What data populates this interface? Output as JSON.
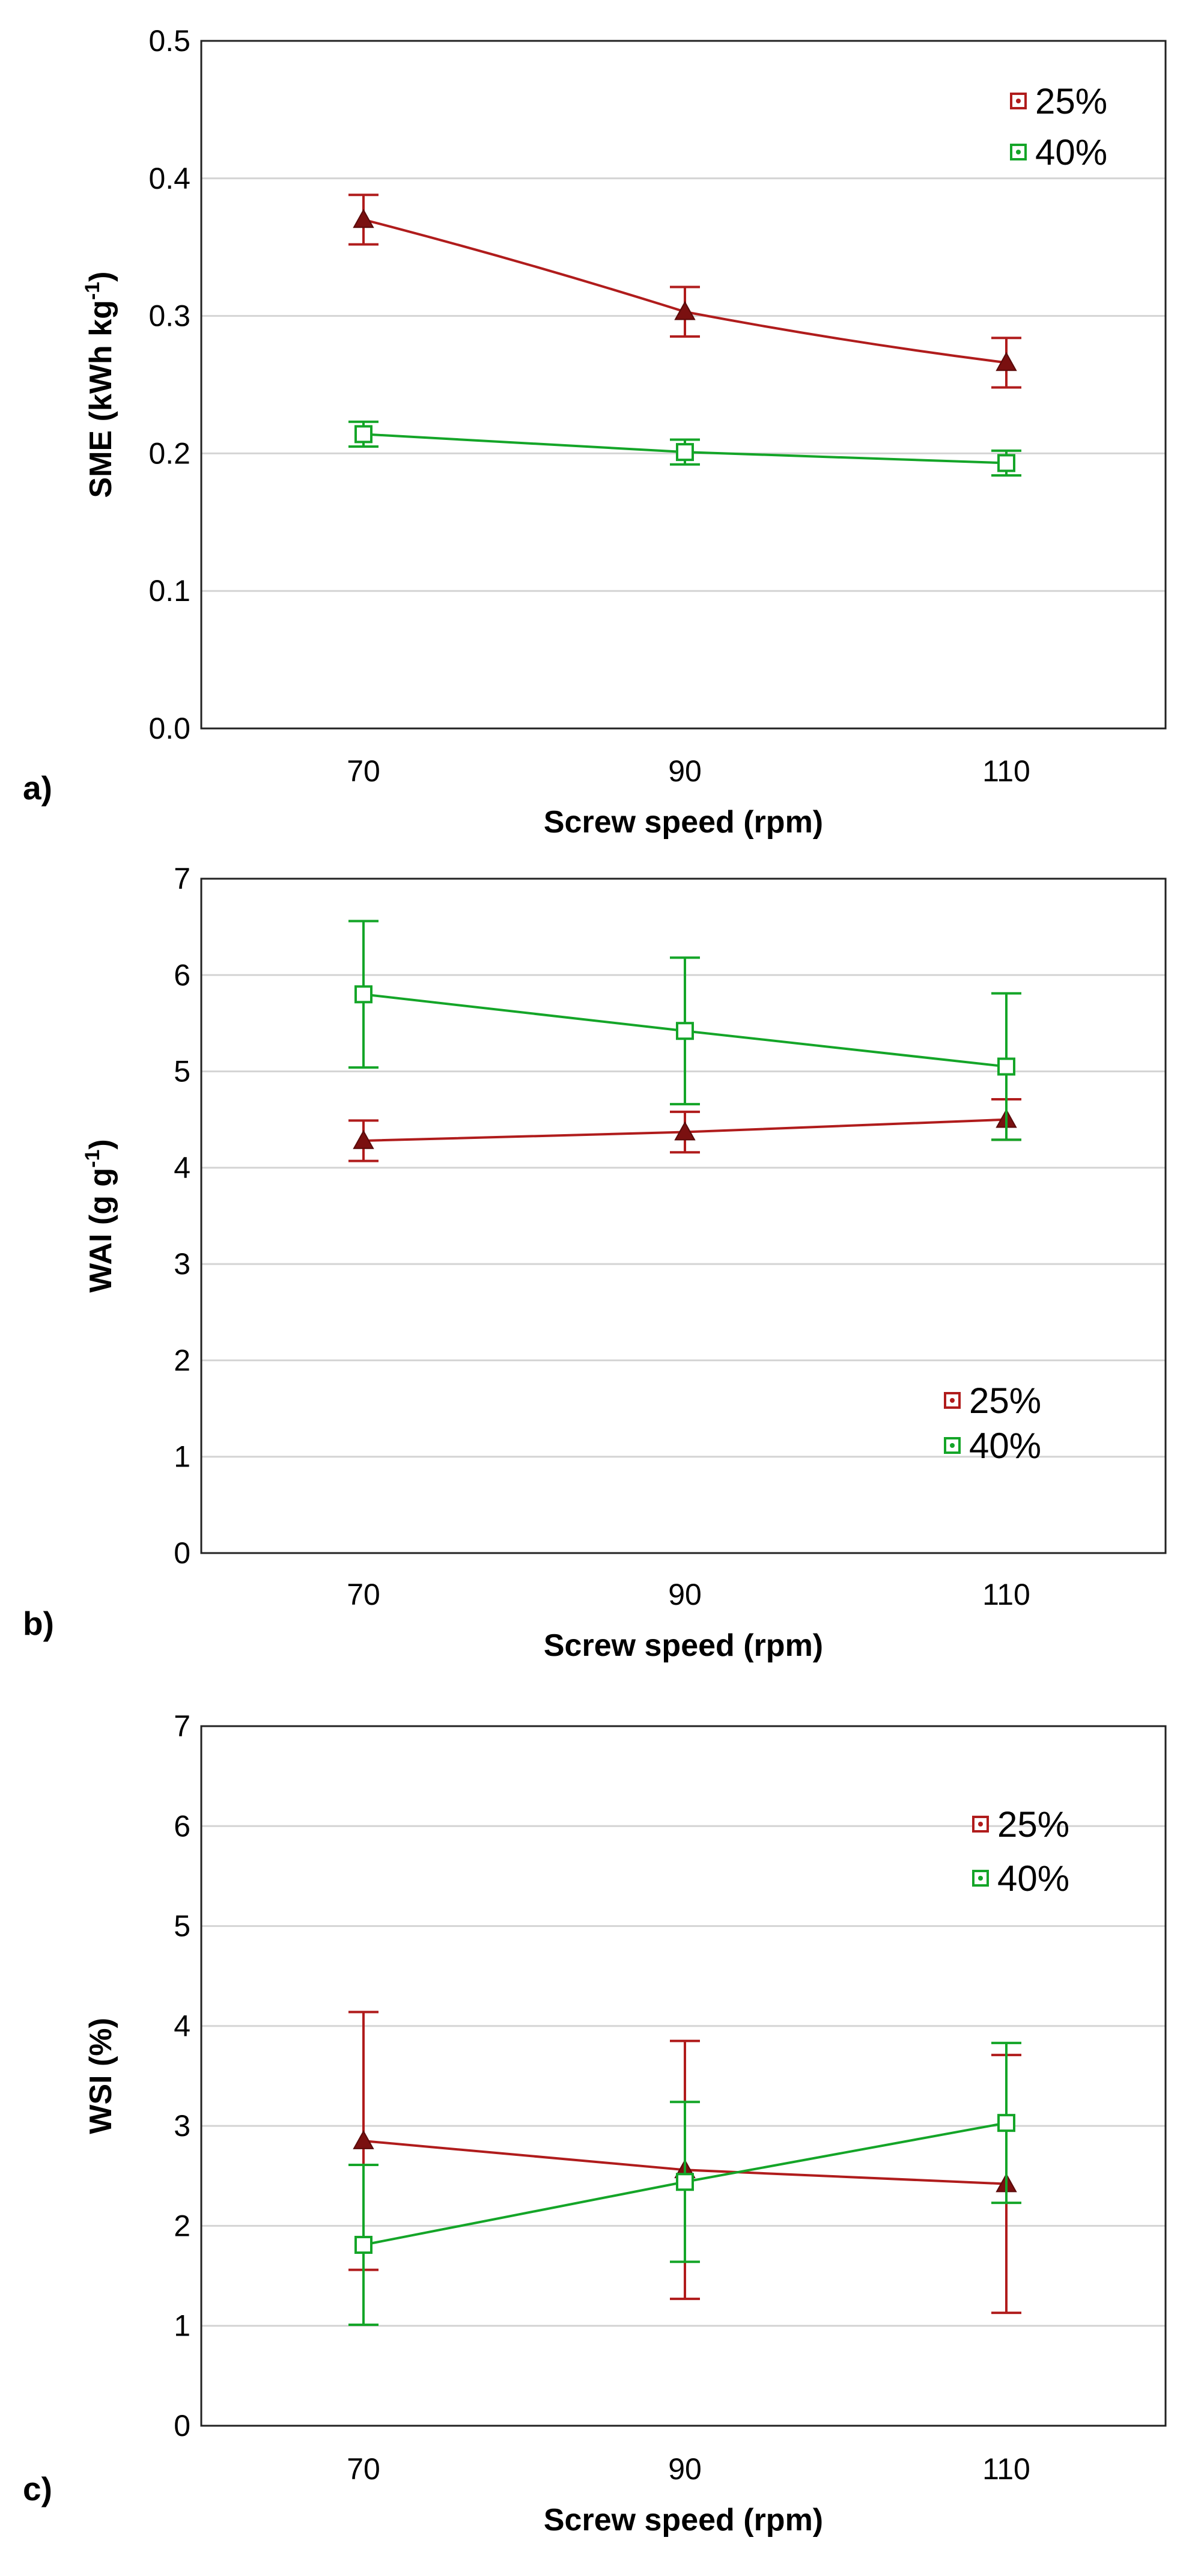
{
  "colors": {
    "series_25": "#b01c1c",
    "series_40": "#14a528",
    "grid": "#d4d4d4",
    "frame": "#222222"
  },
  "chart_data": [
    {
      "panel_label": "a)",
      "type": "line",
      "xlabel": "Screw speed (rpm)",
      "ylabel": "SME (kWh kg-1)",
      "ylabel_parts": {
        "main": "SME (kWh kg",
        "sup": "-1",
        "end": ")"
      },
      "categories": [
        "70",
        "90",
        "110"
      ],
      "ylim": [
        0,
        0.5
      ],
      "yticks": [
        "0.0",
        "0.1",
        "0.2",
        "0.3",
        "0.4",
        "0.5"
      ],
      "legend_position": "top-right",
      "grid": true,
      "series": [
        {
          "name": "25%",
          "marker": "triangle",
          "values": [
            0.37,
            0.303,
            0.266
          ],
          "err_low": [
            0.352,
            0.285,
            0.248
          ],
          "err_high": [
            0.388,
            0.321,
            0.284
          ]
        },
        {
          "name": "40%",
          "marker": "square",
          "values": [
            0.214,
            0.201,
            0.193
          ],
          "err_low": [
            0.205,
            0.192,
            0.184
          ],
          "err_high": [
            0.223,
            0.21,
            0.202
          ]
        }
      ]
    },
    {
      "panel_label": "b)",
      "type": "line",
      "xlabel": "Screw speed (rpm)",
      "ylabel": "WAI (g g-1)",
      "ylabel_parts": {
        "main": "WAI (g g",
        "sup": "-1",
        "end": ")"
      },
      "categories": [
        "70",
        "90",
        "110"
      ],
      "ylim": [
        0,
        7
      ],
      "yticks": [
        "0",
        "1",
        "2",
        "3",
        "4",
        "5",
        "6",
        "7"
      ],
      "legend_position": "bottom-right",
      "grid": true,
      "series": [
        {
          "name": "25%",
          "marker": "triangle",
          "values": [
            4.28,
            4.37,
            4.5
          ],
          "err_low": [
            4.07,
            4.16,
            4.29
          ],
          "err_high": [
            4.49,
            4.58,
            4.71
          ]
        },
        {
          "name": "40%",
          "marker": "square",
          "values": [
            5.8,
            5.42,
            5.05
          ],
          "err_low": [
            5.04,
            4.66,
            4.29
          ],
          "err_high": [
            6.56,
            6.18,
            5.81
          ]
        }
      ]
    },
    {
      "panel_label": "c)",
      "type": "line",
      "xlabel": "Screw speed (rpm)",
      "ylabel": "WSI (%)",
      "ylabel_parts": {
        "main": "WSI (%)",
        "sup": "",
        "end": ""
      },
      "categories": [
        "70",
        "90",
        "110"
      ],
      "ylim": [
        0,
        7
      ],
      "yticks": [
        "0",
        "1",
        "2",
        "3",
        "4",
        "5",
        "6",
        "7"
      ],
      "legend_position": "top-right",
      "grid": true,
      "series": [
        {
          "name": "25%",
          "marker": "triangle",
          "values": [
            2.85,
            2.56,
            2.42
          ],
          "err_low": [
            1.56,
            1.27,
            1.13
          ],
          "err_high": [
            4.14,
            3.85,
            3.71
          ]
        },
        {
          "name": "40%",
          "marker": "square",
          "values": [
            1.81,
            2.44,
            3.03
          ],
          "err_low": [
            1.01,
            1.64,
            2.23
          ],
          "err_high": [
            2.61,
            3.24,
            3.83
          ]
        }
      ]
    }
  ]
}
